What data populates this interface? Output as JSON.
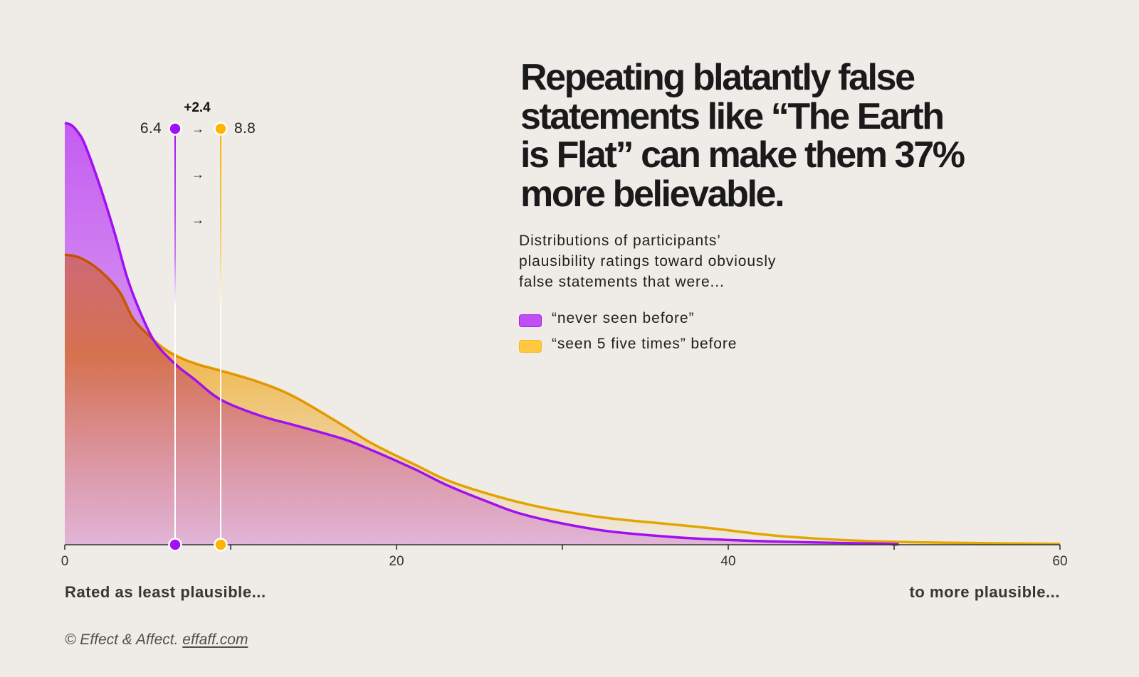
{
  "header": {
    "title_lines": [
      "Repeating blatantly false",
      "statements like “The Earth",
      "is Flat” can make them 37%",
      "more believable."
    ],
    "subtitle_lines": [
      "Distributions of participants’",
      "plausibility ratings toward obviously",
      "false statements that were..."
    ]
  },
  "legend": [
    {
      "label": "“never seen before”",
      "color": "#c050f5",
      "border": "#a020e0"
    },
    {
      "label": "“seen 5 five times” before",
      "color": "#ffc840",
      "border": "#f5b820"
    }
  ],
  "annotations": {
    "difference": "+2.4",
    "left_value": "6.4",
    "right_value": "8.8",
    "arrows": [
      "→",
      "→",
      "→"
    ]
  },
  "axis": {
    "left_label": "Rated as least plausible...",
    "right_label": "to more plausible..."
  },
  "footer": {
    "copyright": "© Effect & Affect.",
    "link": "effaff.com"
  },
  "chart_data": {
    "type": "area",
    "title": "Repeating blatantly false statements like “The Earth is Flat” can make them 37% more believable.",
    "subtitle": "Distributions of participants’ plausibility ratings toward obviously false statements that were...",
    "xlabel_left": "Rated as least plausible...",
    "xlabel_right": "to more plausible...",
    "ylabel": "",
    "xlim": [
      0,
      60
    ],
    "ylim": [
      0,
      1
    ],
    "x_ticks": [
      0,
      10,
      20,
      30,
      40,
      50,
      60
    ],
    "x_tick_labels": [
      "0",
      "",
      "20",
      "",
      "40",
      "",
      "60"
    ],
    "grid": false,
    "legend_position": "right",
    "series": [
      {
        "name": "“never seen before”",
        "stroke": "#a010f0",
        "dot": "#a210f5",
        "marker_value": 6.4,
        "points": [
          [
            0,
            1.0
          ],
          [
            0.4,
            0.995
          ],
          [
            0.8,
            0.978
          ],
          [
            1.2,
            0.95
          ],
          [
            2.1,
            0.853
          ],
          [
            3.0,
            0.74
          ],
          [
            3.8,
            0.629
          ],
          [
            4.7,
            0.538
          ],
          [
            5.5,
            0.477
          ],
          [
            6.7,
            0.427
          ],
          [
            7.8,
            0.393
          ],
          [
            9.4,
            0.344
          ],
          [
            11.7,
            0.307
          ],
          [
            13.8,
            0.284
          ],
          [
            16.7,
            0.252
          ],
          [
            18.4,
            0.226
          ],
          [
            21.0,
            0.181
          ],
          [
            23.0,
            0.142
          ],
          [
            25.3,
            0.105
          ],
          [
            27.9,
            0.069
          ],
          [
            32.2,
            0.035
          ],
          [
            36.4,
            0.019
          ],
          [
            39.0,
            0.013
          ],
          [
            43.3,
            0.007
          ],
          [
            49.7,
            0.002
          ],
          [
            49.9,
            0
          ]
        ]
      },
      {
        "name": "“seen 5 five times” before",
        "stroke": "#f2b600",
        "dot": "#ffb400",
        "marker_value": 8.8,
        "points": [
          [
            0,
            0.688
          ],
          [
            0.9,
            0.681
          ],
          [
            2.1,
            0.651
          ],
          [
            3.3,
            0.6
          ],
          [
            4.1,
            0.538
          ],
          [
            5.0,
            0.499
          ],
          [
            6.0,
            0.465
          ],
          [
            7.0,
            0.443
          ],
          [
            8.1,
            0.427
          ],
          [
            9.4,
            0.413
          ],
          [
            11.7,
            0.386
          ],
          [
            13.8,
            0.352
          ],
          [
            16.7,
            0.285
          ],
          [
            18.4,
            0.243
          ],
          [
            21.0,
            0.192
          ],
          [
            23.6,
            0.145
          ],
          [
            27.9,
            0.096
          ],
          [
            32.2,
            0.066
          ],
          [
            36.4,
            0.049
          ],
          [
            39.0,
            0.039
          ],
          [
            43.3,
            0.02
          ],
          [
            49.7,
            0.007
          ],
          [
            60,
            0.002
          ]
        ]
      }
    ],
    "annotations": {
      "difference": "+2.4",
      "headline_increase": "37%"
    }
  }
}
